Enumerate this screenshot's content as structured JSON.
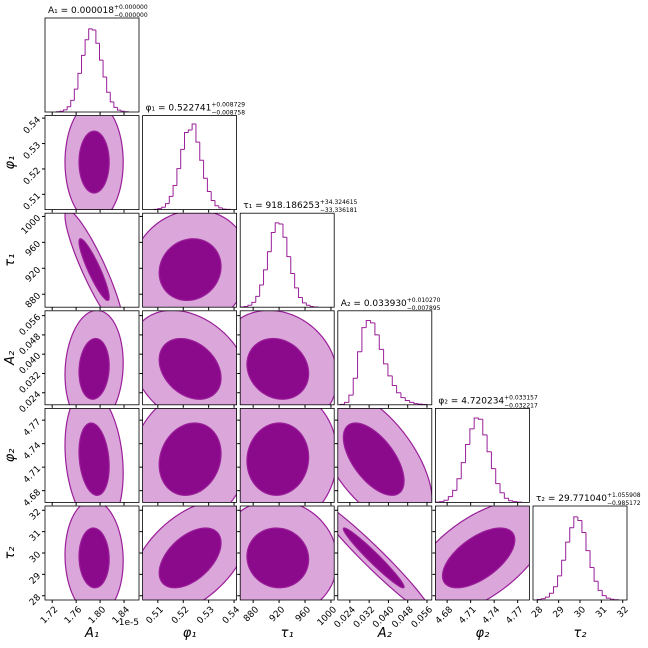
{
  "chart_data": {
    "type": "corner",
    "colors": {
      "line": "#9a1f99",
      "inner": "#8b0a8b",
      "outer": "#dba7db",
      "frame": "#000000"
    },
    "parameters": [
      {
        "name": "A₁",
        "title": "A₁ = 0.000018",
        "title_plus": "+0.000000",
        "title_minus": "−0.000000",
        "offset_label": "1e-5",
        "lim": [
          1.708,
          1.865
        ],
        "ticks": [
          1.72,
          1.76,
          {
            "value": 1.8,
            "label": "1.80"
          },
          1.84
        ],
        "mean": 1.79,
        "sigma": 0.018,
        "bins": [
          1.727,
          1.733,
          1.739,
          1.745,
          1.751,
          1.757,
          1.763,
          1.769,
          1.775,
          1.781,
          1.787,
          1.793,
          1.799,
          1.805,
          1.811,
          1.817,
          1.823,
          1.829,
          1.835,
          1.841,
          1.847
        ],
        "counts": [
          1,
          3,
          9,
          22,
          48,
          95,
          160,
          235,
          300,
          345,
          340,
          285,
          215,
          145,
          82,
          42,
          19,
          8,
          3,
          1
        ]
      },
      {
        "name": "φ₁",
        "title": "φ₁ = 0.522741",
        "title_plus": "+0.008729",
        "title_minus": "−0.008758",
        "lim": [
          0.504,
          0.541
        ],
        "ticks": [
          0.51,
          0.52,
          0.53,
          0.54
        ],
        "mean": 0.5227,
        "sigma": 0.0087,
        "bins": [
          0.5085,
          0.51,
          0.5115,
          0.513,
          0.5145,
          0.516,
          0.5175,
          0.519,
          0.5205,
          0.522,
          0.5235,
          0.525,
          0.5265,
          0.528,
          0.5295,
          0.531,
          0.5325,
          0.534,
          0.5355,
          0.537,
          0.5385
        ],
        "counts": [
          1,
          4,
          10,
          25,
          55,
          100,
          170,
          250,
          320,
          330,
          355,
          280,
          205,
          130,
          75,
          38,
          16,
          7,
          2,
          1
        ]
      },
      {
        "name": "τ₁",
        "title": "τ₁ = 918.186253",
        "title_plus": "+34.324615",
        "title_minus": "−33.336181",
        "lim": [
          860,
          1005
        ],
        "ticks": [
          880,
          920,
          960,
          1000
        ],
        "mean": 918,
        "sigma": 34,
        "bins": [
          860,
          866,
          872,
          878,
          884,
          890,
          896,
          902,
          908,
          914,
          920,
          926,
          932,
          938,
          944,
          950,
          956,
          962,
          968,
          974,
          980
        ],
        "counts": [
          1,
          3,
          8,
          20,
          45,
          92,
          155,
          230,
          310,
          350,
          345,
          290,
          210,
          140,
          80,
          40,
          18,
          8,
          3,
          1
        ]
      },
      {
        "name": "A₂",
        "title": "A₂ = 0.033930",
        "title_plus": "+0.010270",
        "title_minus": "−0.007895",
        "lim": [
          0.019,
          0.058
        ],
        "ticks": [
          0.024,
          0.032,
          {
            "value": 0.04,
            "label": "0.040"
          },
          0.048,
          0.056
        ],
        "mean": 0.0339,
        "sigma": 0.009,
        "bins": [
          0.02,
          0.0218,
          0.0236,
          0.0254,
          0.0272,
          0.029,
          0.0308,
          0.0326,
          0.0344,
          0.0362,
          0.038,
          0.0398,
          0.0416,
          0.0434,
          0.0452,
          0.047,
          0.0488,
          0.0506,
          0.0524,
          0.0542,
          0.056
        ],
        "counts": [
          2,
          10,
          40,
          110,
          220,
          320,
          350,
          340,
          290,
          230,
          170,
          120,
          80,
          50,
          30,
          18,
          10,
          5,
          3,
          1
        ]
      },
      {
        "name": "φ₂",
        "title": "φ₂ = 4.720234",
        "title_plus": "+0.033157",
        "title_minus": "−0.032217",
        "lim": [
          4.665,
          4.785
        ],
        "ticks": [
          4.68,
          4.71,
          4.74,
          4.77
        ],
        "mean": 4.7202,
        "sigma": 0.033,
        "bins": [
          4.665,
          4.6705,
          4.676,
          4.6815,
          4.687,
          4.6925,
          4.698,
          4.7035,
          4.709,
          4.7145,
          4.72,
          4.7255,
          4.731,
          4.7365,
          4.742,
          4.7475,
          4.753,
          4.7585,
          4.764,
          4.7695,
          4.775
        ],
        "counts": [
          1,
          3,
          9,
          24,
          50,
          98,
          165,
          240,
          305,
          350,
          345,
          280,
          210,
          140,
          78,
          40,
          17,
          7,
          3,
          1
        ]
      },
      {
        "name": "τ₂",
        "title": "τ₂ = 29.771040",
        "title_plus": "+1.055908",
        "title_minus": "−0.985172",
        "lim": [
          27.8,
          32.2
        ],
        "ticks": [
          28,
          29,
          30,
          31,
          32
        ],
        "mean": 29.77,
        "sigma": 1.0,
        "bins": [
          28,
          28.19,
          28.38,
          28.57,
          28.76,
          28.95,
          29.14,
          29.33,
          29.52,
          29.71,
          29.9,
          30.09,
          30.28,
          30.47,
          30.66,
          30.85,
          31.04,
          31.23,
          31.42,
          31.61,
          31.8
        ],
        "counts": [
          2,
          5,
          12,
          28,
          55,
          100,
          165,
          240,
          300,
          345,
          330,
          280,
          205,
          135,
          78,
          40,
          18,
          8,
          3,
          1
        ]
      }
    ],
    "hist_ylim": [
      0,
      390
    ],
    "correlations": [
      [
        0.0
      ],
      [
        -0.9,
        0.1
      ],
      [
        0.1,
        -0.3,
        -0.15
      ],
      [
        -0.2,
        0.15,
        0.05,
        -0.6
      ],
      [
        -0.05,
        0.5,
        -0.05,
        -0.97,
        0.6
      ]
    ]
  }
}
